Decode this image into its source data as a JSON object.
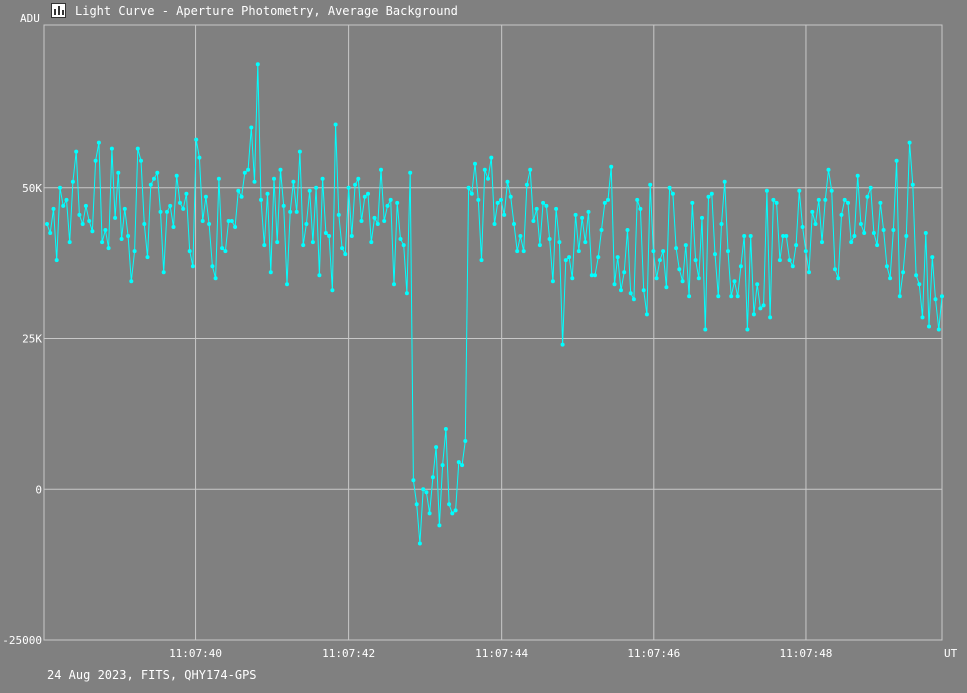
{
  "window": {
    "title": "Light Curve - Aperture Photometry, Average Background",
    "icon": "light-curve-icon"
  },
  "footer": {
    "info": "24 Aug 2023, FITS, QHY174-GPS"
  },
  "colors": {
    "background": "#808080",
    "grid": "#c8c8c8",
    "series": "#00ffff",
    "text": "#ffffff"
  },
  "chart_data": {
    "type": "line",
    "ylabel": "ADU",
    "xlabel": "UT",
    "ylim": [
      -25000,
      77000
    ],
    "xlim": [
      0,
      1000
    ],
    "y_ticks": [
      {
        "value": 50000,
        "label": "50K"
      },
      {
        "value": 25000,
        "label": "25K"
      },
      {
        "value": 0,
        "label": "0"
      },
      {
        "value": -25000,
        "label": "-25000"
      }
    ],
    "x_ticks": [
      {
        "value": 166,
        "label": "11:07:40"
      },
      {
        "value": 337,
        "label": "11:07:42"
      },
      {
        "value": 508,
        "label": "11:07:44"
      },
      {
        "value": 678,
        "label": "11:07:46"
      },
      {
        "value": 848,
        "label": "11:07:48"
      }
    ],
    "grid": true,
    "series": [
      {
        "values": [
          44000,
          42500,
          46500,
          38000,
          50000,
          47000,
          48000,
          41000,
          51000,
          56000,
          45500,
          44000,
          47000,
          44500,
          42800,
          54500,
          57500,
          41000,
          43000,
          40000,
          56500,
          45000,
          52500,
          41500,
          46500,
          42000,
          34500,
          39500,
          56500,
          54500,
          44000,
          38500,
          50500,
          51500,
          52500,
          46000,
          36000,
          46000,
          47000,
          43500,
          52000,
          47500,
          46500,
          49000,
          39500,
          37000,
          58000,
          55000,
          44500,
          48500,
          44000,
          37000,
          35000,
          51500,
          40000,
          39500,
          44500,
          44500,
          43500,
          49500,
          48500,
          52500,
          53000,
          60000,
          51000,
          70500,
          48000,
          40500,
          49000,
          36000,
          51500,
          41000,
          53000,
          47000,
          34000,
          46000,
          51000,
          46000,
          56000,
          40500,
          44000,
          49500,
          41000,
          50000,
          35500,
          51500,
          42500,
          42000,
          33000,
          60500,
          45500,
          40000,
          39000,
          50000,
          42000,
          50500,
          51500,
          44500,
          48500,
          49000,
          41000,
          45000,
          44000,
          53000,
          44500,
          47000,
          48000,
          34000,
          47500,
          41500,
          40500,
          32500,
          52500,
          1500,
          -2500,
          -9000,
          0,
          -500,
          -4000,
          2000,
          7000,
          -6000,
          4000,
          10000,
          -2500,
          -4000,
          -3500,
          4500,
          4000,
          8000,
          50000,
          49000,
          54000,
          48000,
          38000,
          53000,
          51500,
          55000,
          44000,
          47500,
          48000,
          45500,
          51000,
          48500,
          44000,
          39500,
          42000,
          39500,
          50500,
          53000,
          44500,
          46500,
          40500,
          47500,
          47000,
          41500,
          34500,
          46500,
          41000,
          24000,
          38000,
          38500,
          35000,
          45500,
          39500,
          45000,
          41000,
          46000,
          35500,
          35500,
          38500,
          43000,
          47500,
          48000,
          53500,
          34000,
          38500,
          33000,
          36000,
          43000,
          32500,
          31500,
          48000,
          46500,
          33000,
          29000,
          50500,
          39500,
          35000,
          38000,
          39500,
          33500,
          50000,
          49000,
          40000,
          36500,
          34500,
          40500,
          32000,
          47500,
          38000,
          35000,
          45000,
          26500,
          48500,
          49000,
          39000,
          32000,
          44000,
          51000,
          39500,
          32000,
          34500,
          32000,
          37000,
          42000,
          26500,
          42000,
          29000,
          34000,
          30000,
          30500,
          49500,
          28500,
          48000,
          47500,
          38000,
          42000,
          42000,
          38000,
          37000,
          40500,
          49500,
          43500,
          39500,
          36000,
          46000,
          44000,
          48000,
          41000,
          48000,
          53000,
          49500,
          36500,
          35000,
          45500,
          48000,
          47500,
          41000,
          42000,
          52000,
          44000,
          42500,
          48500,
          50000,
          42500,
          40500,
          47500,
          43000,
          37000,
          35000,
          43000,
          54500,
          32000,
          36000,
          42000,
          57500,
          50500,
          35500,
          34000,
          28500,
          42500,
          27000,
          38500,
          31500,
          26500,
          32000
        ]
      }
    ]
  }
}
